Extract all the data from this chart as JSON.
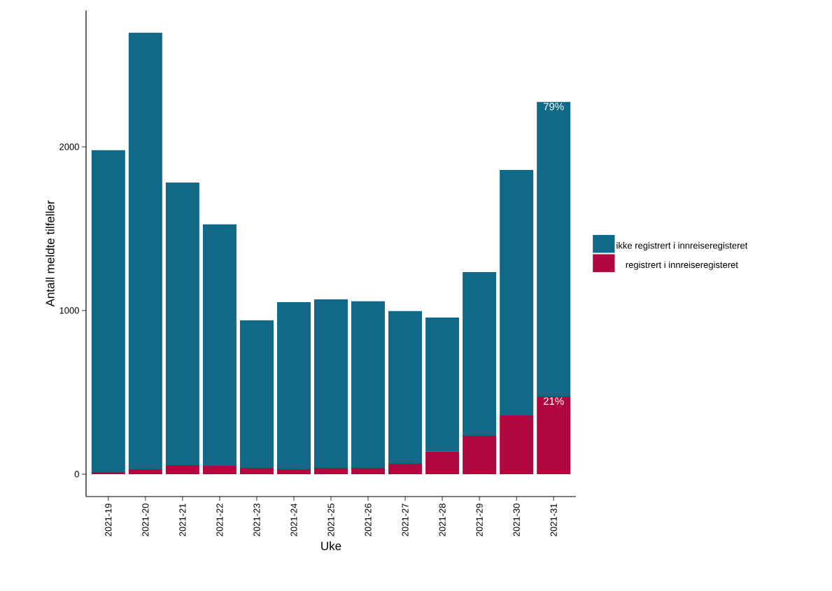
{
  "chart_data": {
    "type": "bar",
    "stacked": true,
    "xlabel": "Uke",
    "ylabel": "Antall meldte tilfeller",
    "categories": [
      "2021-19",
      "2021-20",
      "2021-21",
      "2021-22",
      "2021-23",
      "2021-24",
      "2021-25",
      "2021-26",
      "2021-27",
      "2021-28",
      "2021-29",
      "2021-30",
      "2021-31"
    ],
    "series": [
      {
        "name": "registrert i innreiseregisteret",
        "color": "#b0073f",
        "values": [
          13,
          30,
          55,
          51,
          38,
          30,
          38,
          38,
          64,
          137,
          235,
          359,
          474
        ]
      },
      {
        "name": "ikke registrert i innreiseregisteret",
        "color": "#106987",
        "values": [
          1966,
          2667,
          1727,
          1475,
          902,
          1021,
          1030,
          1018,
          932,
          820,
          1000,
          1500,
          1800
        ]
      }
    ],
    "annotations": [
      {
        "text": "79%",
        "x": "2021-31",
        "y": 2274
      },
      {
        "text": "21%",
        "x": "2021-31",
        "y": 474
      }
    ],
    "ylim": [
      -137,
      2833
    ],
    "yticks": [
      0,
      1000,
      2000
    ],
    "grid": false,
    "legend": "right"
  }
}
